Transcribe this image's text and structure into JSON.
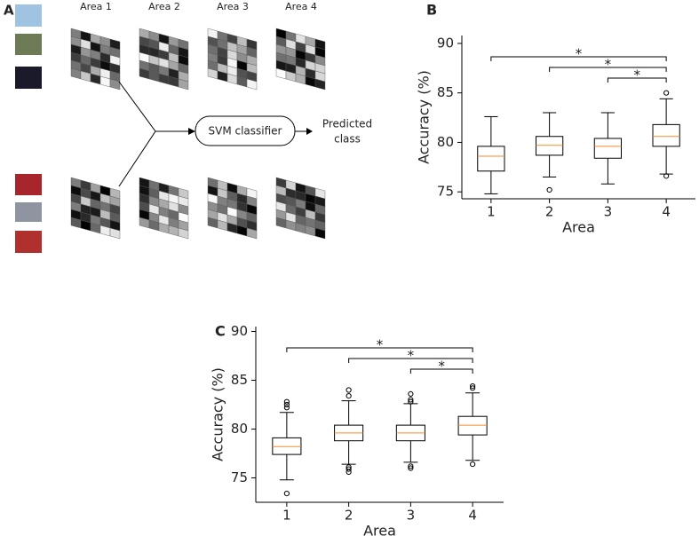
{
  "diagram": {
    "panel_label": "A",
    "areas": [
      "Area 1",
      "Area 2",
      "Area 3",
      "Area 4"
    ],
    "classifier": "SVM classifier",
    "output": [
      "Predicted",
      "class"
    ]
  },
  "chart_data": [
    {
      "type": "box",
      "panel_label": "B",
      "x_label": "Area",
      "y_label": "Accuracy (%)",
      "categories": [
        "1",
        "2",
        "3",
        "4"
      ],
      "ylim": [
        74.3,
        90.8
      ],
      "yticks": [
        75,
        80,
        85,
        90
      ],
      "color": "#000000",
      "median_color": "#f28e2b",
      "boxes": [
        {
          "whisker_low": 74.8,
          "q1": 77.1,
          "median": 78.6,
          "q3": 79.6,
          "whisker_high": 82.6,
          "outliers": []
        },
        {
          "whisker_low": 76.5,
          "q1": 78.7,
          "median": 79.7,
          "q3": 80.6,
          "whisker_high": 83.0,
          "outliers": [
            75.2
          ]
        },
        {
          "whisker_low": 75.8,
          "q1": 78.4,
          "median": 79.6,
          "q3": 80.4,
          "whisker_high": 83.0,
          "outliers": []
        },
        {
          "whisker_low": 76.8,
          "q1": 79.6,
          "median": 80.6,
          "q3": 81.8,
          "whisker_high": 84.4,
          "outliers": [
            85.0,
            76.6
          ]
        }
      ],
      "comparisons": [
        {
          "from": "1",
          "to": "4",
          "label": "*"
        },
        {
          "from": "2",
          "to": "4",
          "label": "*"
        },
        {
          "from": "3",
          "to": "4",
          "label": "*"
        }
      ]
    },
    {
      "type": "box",
      "panel_label": "C",
      "x_label": "Area",
      "y_label": "Accuracy (%)",
      "categories": [
        "1",
        "2",
        "3",
        "4"
      ],
      "ylim": [
        72.5,
        90.5
      ],
      "yticks": [
        75,
        80,
        85,
        90
      ],
      "color": "#000000",
      "median_color": "#f28e2b",
      "boxes": [
        {
          "whisker_low": 74.8,
          "q1": 77.4,
          "median": 78.2,
          "q3": 79.1,
          "whisker_high": 81.7,
          "outliers": [
            82.2,
            82.5,
            82.8,
            73.4
          ]
        },
        {
          "whisker_low": 76.4,
          "q1": 78.8,
          "median": 79.6,
          "q3": 80.4,
          "whisker_high": 82.9,
          "outliers": [
            83.4,
            84.0,
            76.1,
            75.9,
            75.6
          ]
        },
        {
          "whisker_low": 76.6,
          "q1": 78.8,
          "median": 79.6,
          "q3": 80.4,
          "whisker_high": 82.6,
          "outliers": [
            82.8,
            83.0,
            83.6,
            76.2,
            76.0
          ]
        },
        {
          "whisker_low": 76.8,
          "q1": 79.4,
          "median": 80.4,
          "q3": 81.3,
          "whisker_high": 83.7,
          "outliers": [
            84.2,
            84.4,
            76.4
          ]
        }
      ],
      "comparisons": [
        {
          "from": "1",
          "to": "4",
          "label": "*"
        },
        {
          "from": "2",
          "to": "4",
          "label": "*"
        },
        {
          "from": "3",
          "to": "4",
          "label": "*"
        }
      ]
    }
  ]
}
